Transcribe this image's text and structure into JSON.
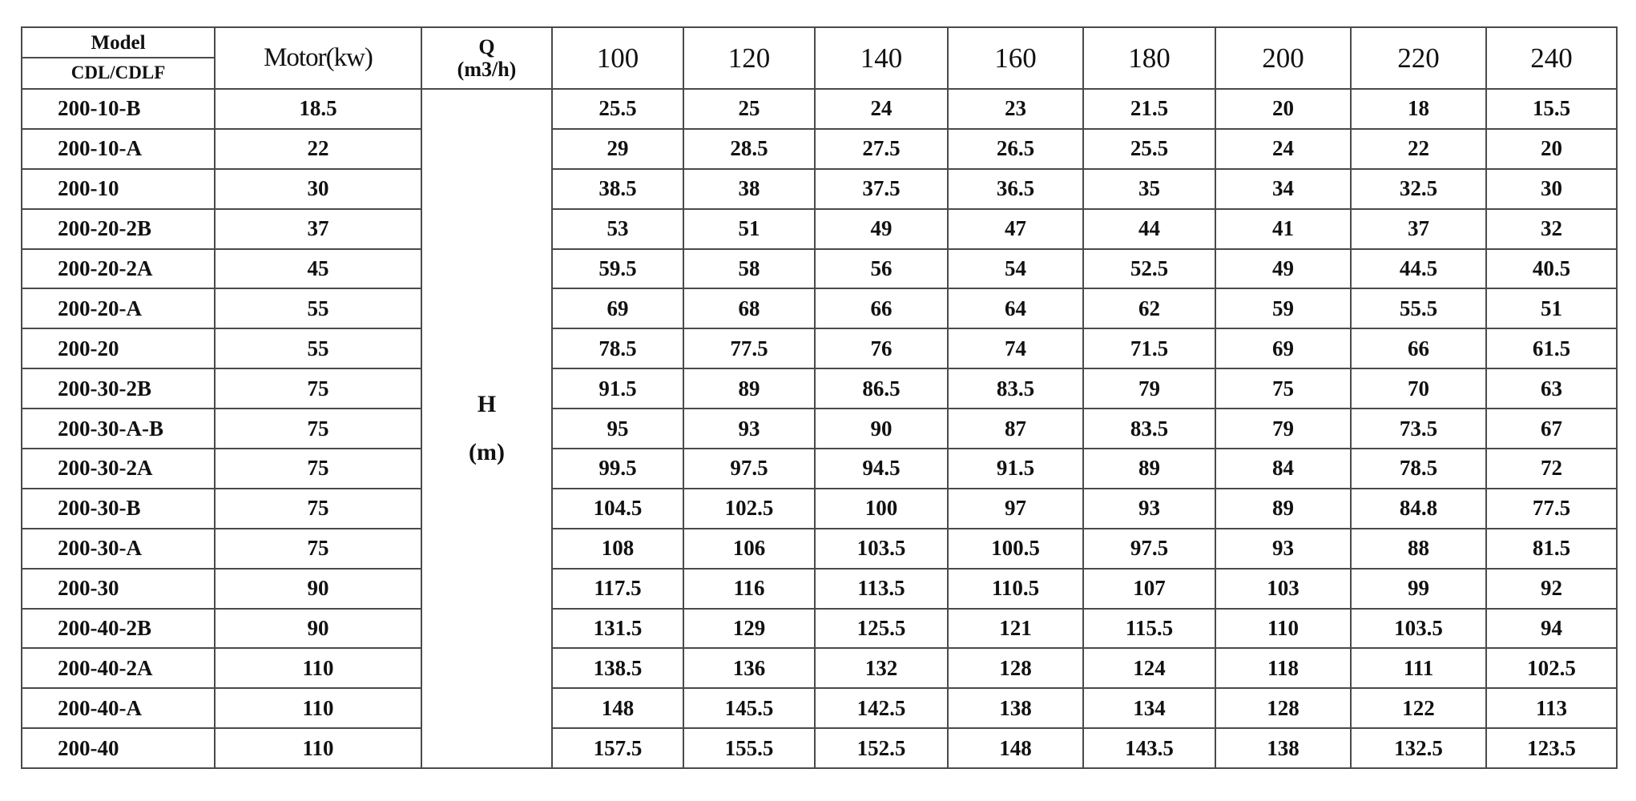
{
  "header": {
    "model_line1": "Model",
    "model_line2": "CDL/CDLF",
    "motor": "Motor(kw)",
    "q_label": "Q",
    "q_unit": "(m3/h)",
    "h_label": "H",
    "h_unit": "(m)"
  },
  "flows": [
    "100",
    "120",
    "140",
    "160",
    "180",
    "200",
    "220",
    "240"
  ],
  "rows": [
    {
      "model": "200-10-B",
      "motor": "18.5",
      "heads": [
        "25.5",
        "25",
        "24",
        "23",
        "21.5",
        "20",
        "18",
        "15.5"
      ]
    },
    {
      "model": "200-10-A",
      "motor": "22",
      "heads": [
        "29",
        "28.5",
        "27.5",
        "26.5",
        "25.5",
        "24",
        "22",
        "20"
      ]
    },
    {
      "model": "200-10",
      "motor": "30",
      "heads": [
        "38.5",
        "38",
        "37.5",
        "36.5",
        "35",
        "34",
        "32.5",
        "30"
      ]
    },
    {
      "model": "200-20-2B",
      "motor": "37",
      "heads": [
        "53",
        "51",
        "49",
        "47",
        "44",
        "41",
        "37",
        "32"
      ]
    },
    {
      "model": "200-20-2A",
      "motor": "45",
      "heads": [
        "59.5",
        "58",
        "56",
        "54",
        "52.5",
        "49",
        "44.5",
        "40.5"
      ]
    },
    {
      "model": "200-20-A",
      "motor": "55",
      "heads": [
        "69",
        "68",
        "66",
        "64",
        "62",
        "59",
        "55.5",
        "51"
      ]
    },
    {
      "model": "200-20",
      "motor": "55",
      "heads": [
        "78.5",
        "77.5",
        "76",
        "74",
        "71.5",
        "69",
        "66",
        "61.5"
      ]
    },
    {
      "model": "200-30-2B",
      "motor": "75",
      "heads": [
        "91.5",
        "89",
        "86.5",
        "83.5",
        "79",
        "75",
        "70",
        "63"
      ]
    },
    {
      "model": "200-30-A-B",
      "motor": "75",
      "heads": [
        "95",
        "93",
        "90",
        "87",
        "83.5",
        "79",
        "73.5",
        "67"
      ]
    },
    {
      "model": "200-30-2A",
      "motor": "75",
      "heads": [
        "99.5",
        "97.5",
        "94.5",
        "91.5",
        "89",
        "84",
        "78.5",
        "72"
      ]
    },
    {
      "model": "200-30-B",
      "motor": "75",
      "heads": [
        "104.5",
        "102.5",
        "100",
        "97",
        "93",
        "89",
        "84.8",
        "77.5"
      ]
    },
    {
      "model": "200-30-A",
      "motor": "75",
      "heads": [
        "108",
        "106",
        "103.5",
        "100.5",
        "97.5",
        "93",
        "88",
        "81.5"
      ]
    },
    {
      "model": "200-30",
      "motor": "90",
      "heads": [
        "117.5",
        "116",
        "113.5",
        "110.5",
        "107",
        "103",
        "99",
        "92"
      ]
    },
    {
      "model": "200-40-2B",
      "motor": "90",
      "heads": [
        "131.5",
        "129",
        "125.5",
        "121",
        "115.5",
        "110",
        "103.5",
        "94"
      ]
    },
    {
      "model": "200-40-2A",
      "motor": "110",
      "heads": [
        "138.5",
        "136",
        "132",
        "128",
        "124",
        "118",
        "111",
        "102.5"
      ]
    },
    {
      "model": "200-40-A",
      "motor": "110",
      "heads": [
        "148",
        "145.5",
        "142.5",
        "138",
        "134",
        "128",
        "122",
        "113"
      ]
    },
    {
      "model": "200-40",
      "motor": "110",
      "heads": [
        "157.5",
        "155.5",
        "152.5",
        "148",
        "143.5",
        "138",
        "132.5",
        "123.5"
      ]
    }
  ]
}
